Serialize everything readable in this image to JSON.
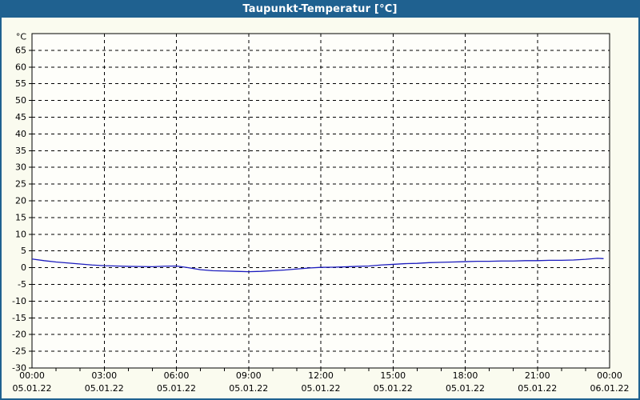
{
  "window": {
    "title": "Taupunkt-Temperatur [°C]"
  },
  "colors": {
    "titlebar": "#1F6190",
    "border": "#1F6190",
    "background": "#FAFBEF",
    "plot_bg": "#FEFEFA",
    "grid": "#000000",
    "axis": "#000000",
    "line": "#1C1CBE",
    "title_text": "#FFFFFF"
  },
  "chart_data": {
    "type": "line",
    "title": "Taupunkt-Temperatur [°C]",
    "ylabel": "°C",
    "xlabel": "",
    "ylim": [
      -30,
      70
    ],
    "xlim_hours": [
      0,
      24
    ],
    "grid": "dashed",
    "legend": "none",
    "yticks": [
      -30,
      -25,
      -20,
      -15,
      -10,
      -5,
      0,
      5,
      10,
      15,
      20,
      25,
      30,
      35,
      40,
      45,
      50,
      55,
      60,
      65
    ],
    "xticks": [
      {
        "time": "00:00",
        "date": "05.01.22",
        "hour": 0
      },
      {
        "time": "03:00",
        "date": "05.01.22",
        "hour": 3
      },
      {
        "time": "06:00",
        "date": "05.01.22",
        "hour": 6
      },
      {
        "time": "09:00",
        "date": "05.01.22",
        "hour": 9
      },
      {
        "time": "12:00",
        "date": "05.01.22",
        "hour": 12
      },
      {
        "time": "15:00",
        "date": "05.01.22",
        "hour": 15
      },
      {
        "time": "18:00",
        "date": "05.01.22",
        "hour": 18
      },
      {
        "time": "21:00",
        "date": "05.01.22",
        "hour": 21
      },
      {
        "time": "00:00",
        "date": "06.01.22",
        "hour": 24
      }
    ],
    "series": [
      {
        "name": "Taupunkt",
        "x_hours": [
          0,
          0.5,
          1,
          1.5,
          2,
          2.5,
          3,
          3.5,
          4,
          4.5,
          5,
          5.5,
          6,
          6.5,
          7,
          7.5,
          8,
          8.5,
          9,
          9.5,
          10,
          10.5,
          11,
          11.5,
          12,
          12.5,
          13,
          13.5,
          14,
          14.5,
          15,
          15.5,
          16,
          16.5,
          17,
          17.5,
          18,
          18.5,
          19,
          19.5,
          20,
          20.5,
          21,
          21.5,
          22,
          22.5,
          23,
          23.5,
          23.75
        ],
        "values": [
          2.6,
          2.1,
          1.7,
          1.4,
          1.1,
          0.8,
          0.6,
          0.5,
          0.4,
          0.35,
          0.3,
          0.45,
          0.5,
          0.0,
          -0.6,
          -0.9,
          -1.0,
          -1.1,
          -1.2,
          -1.1,
          -0.9,
          -0.7,
          -0.4,
          -0.1,
          0.1,
          0.15,
          0.25,
          0.4,
          0.5,
          0.8,
          1.0,
          1.2,
          1.3,
          1.5,
          1.6,
          1.7,
          1.8,
          1.9,
          1.9,
          2.0,
          2.0,
          2.1,
          2.1,
          2.2,
          2.2,
          2.3,
          2.5,
          2.8,
          2.7
        ]
      }
    ]
  }
}
